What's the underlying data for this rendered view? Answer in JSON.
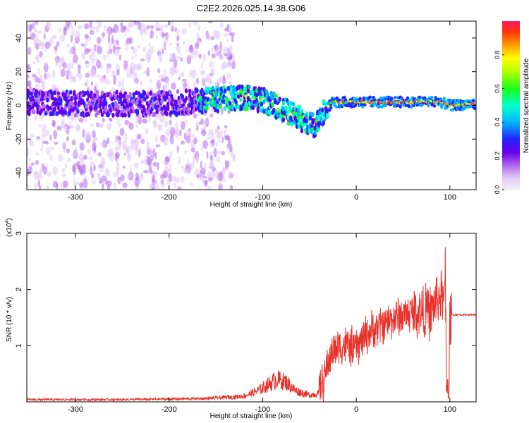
{
  "title": "C2E2.2026.025.14.38.G06",
  "chart_data": [
    {
      "type": "heatmap",
      "name": "spectrogram",
      "xlabel": "Height of straight line (km)",
      "ylabel": "Frequency (Hz)",
      "xlim": [
        -352,
        128
      ],
      "ylim": [
        -50,
        50
      ],
      "xticks": [
        -300,
        -200,
        -100,
        0,
        100
      ],
      "xtick_labels": [
        "-300",
        "-200",
        "-100",
        "0",
        "100"
      ],
      "yticks": [
        -40,
        -20,
        0,
        20,
        40
      ],
      "ytick_labels": [
        "-40",
        "-20",
        "0",
        "20",
        "40"
      ],
      "colorbar": {
        "label": "Normalized spectral amplitude",
        "range": [
          0,
          1
        ],
        "ticks": [
          0.0,
          0.2,
          0.4,
          0.6,
          0.8
        ],
        "tick_labels": [
          "0.0",
          "0.2",
          "0.4",
          "0.6",
          "0.8"
        ],
        "colors": [
          "#f2f2f2",
          "#e3c8f5",
          "#b36cf0",
          "#6a00e8",
          "#2424ff",
          "#00b6ff",
          "#00ffc8",
          "#1aff1a",
          "#b4ff00",
          "#ffff00",
          "#ff9a00",
          "#ff3010",
          "#ff1a66"
        ]
      },
      "ridge": {
        "x": [
          -352,
          -300,
          -250,
          -200,
          -160,
          -140,
          -120,
          -100,
          -80,
          -60,
          -45,
          -35,
          -25,
          0,
          50,
          90,
          100,
          128
        ],
        "frequency": [
          2,
          1,
          1,
          1,
          3,
          4,
          5,
          3,
          -2,
          -8,
          -12,
          -4,
          2,
          2,
          2,
          2,
          0,
          1
        ]
      }
    },
    {
      "type": "line",
      "name": "snr",
      "xlabel": "Height of straight line (km)",
      "ylabel": "SNR (10 * v/v)",
      "exponent_label": "(x10",
      "exponent_power": "4",
      "exponent_close": ")",
      "xlim": [
        -352,
        128
      ],
      "ylim": [
        0,
        3.0
      ],
      "xticks": [
        -300,
        -200,
        -100,
        0,
        100
      ],
      "xtick_labels": [
        "-300",
        "-200",
        "-100",
        "0",
        "100"
      ],
      "yticks": [
        1,
        2,
        3
      ],
      "ytick_labels": [
        "1",
        "2",
        "3"
      ],
      "color": "#e8312a",
      "series": [
        {
          "name": "SNR",
          "x": [
            -352,
            -300,
            -250,
            -200,
            -160,
            -140,
            -120,
            -105,
            -95,
            -85,
            -75,
            -65,
            -50,
            -40,
            -35,
            -30,
            -25,
            -20,
            -10,
            0,
            10,
            20,
            30,
            40,
            50,
            60,
            70,
            80,
            85,
            90,
            95,
            98,
            100,
            105,
            128
          ],
          "y": [
            0.04,
            0.04,
            0.04,
            0.05,
            0.06,
            0.08,
            0.1,
            0.2,
            0.3,
            0.4,
            0.35,
            0.2,
            0.12,
            0.15,
            0.4,
            0.7,
            0.9,
            1.0,
            1.0,
            0.95,
            1.2,
            1.3,
            1.4,
            1.5,
            1.55,
            1.6,
            1.6,
            1.6,
            1.8,
            1.9,
            1.7,
            0.6,
            1.55,
            1.55,
            1.55
          ]
        }
      ]
    }
  ]
}
